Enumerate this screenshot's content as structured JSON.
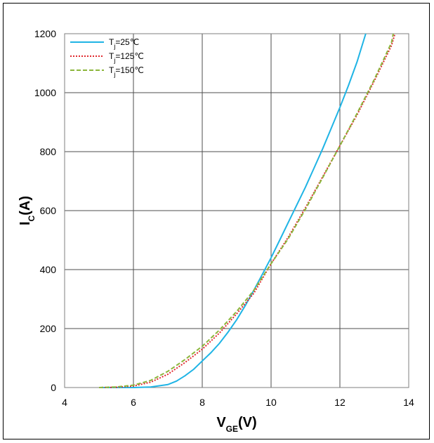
{
  "chart_data": {
    "type": "line",
    "xlabel_main": "V",
    "xlabel_sub": "GE",
    "xlabel_tail": "(V)",
    "ylabel_main": "I",
    "ylabel_sub": "C",
    "ylabel_tail": "(A)",
    "xlim": [
      4,
      14
    ],
    "ylim": [
      0,
      1200
    ],
    "xticks": [
      4,
      6,
      8,
      10,
      12,
      14
    ],
    "yticks": [
      0,
      200,
      400,
      600,
      800,
      1000,
      1200
    ],
    "grid": true,
    "legend_position": "top-left",
    "series": [
      {
        "name_main": "T",
        "name_sub": "j",
        "name_tail": "=25℃",
        "color": "#1fb4e5",
        "dash": "solid",
        "x": [
          5.0,
          5.5,
          6.0,
          6.5,
          7.0,
          7.25,
          7.5,
          7.75,
          8.0,
          8.25,
          8.5,
          8.75,
          9.0,
          9.25,
          9.5,
          9.75,
          10.0,
          10.25,
          10.5,
          10.75,
          11.0,
          11.25,
          11.5,
          11.75,
          12.0,
          12.25,
          12.5,
          12.75
        ],
        "y": [
          0,
          0,
          0,
          2,
          10,
          22,
          40,
          62,
          90,
          118,
          150,
          188,
          230,
          278,
          330,
          385,
          440,
          500,
          560,
          620,
          680,
          745,
          810,
          880,
          950,
          1025,
          1105,
          1200
        ]
      },
      {
        "name_main": "T",
        "name_sub": "j",
        "name_tail": "=125℃",
        "color": "#e0282e",
        "dash": "dotted",
        "x": [
          5.0,
          5.5,
          6.0,
          6.5,
          7.0,
          7.5,
          8.0,
          8.5,
          9.0,
          9.5,
          10.0,
          10.5,
          11.0,
          11.5,
          12.0,
          12.5,
          13.0,
          13.5,
          13.6
        ],
        "y": [
          0,
          1,
          5,
          18,
          45,
          85,
          130,
          185,
          250,
          320,
          420,
          510,
          610,
          715,
          820,
          925,
          1040,
          1160,
          1200
        ]
      },
      {
        "name_main": "T",
        "name_sub": "j",
        "name_tail": "=150℃",
        "color": "#8cb63c",
        "dash": "dashed",
        "x": [
          5.0,
          5.5,
          6.0,
          6.5,
          7.0,
          7.5,
          8.0,
          8.5,
          9.0,
          9.5,
          10.0,
          10.5,
          11.0,
          11.5,
          12.0,
          12.5,
          13.0,
          13.5,
          13.55
        ],
        "y": [
          0,
          2,
          8,
          24,
          55,
          95,
          140,
          195,
          258,
          330,
          420,
          505,
          605,
          712,
          820,
          930,
          1045,
          1170,
          1200
        ]
      }
    ]
  }
}
